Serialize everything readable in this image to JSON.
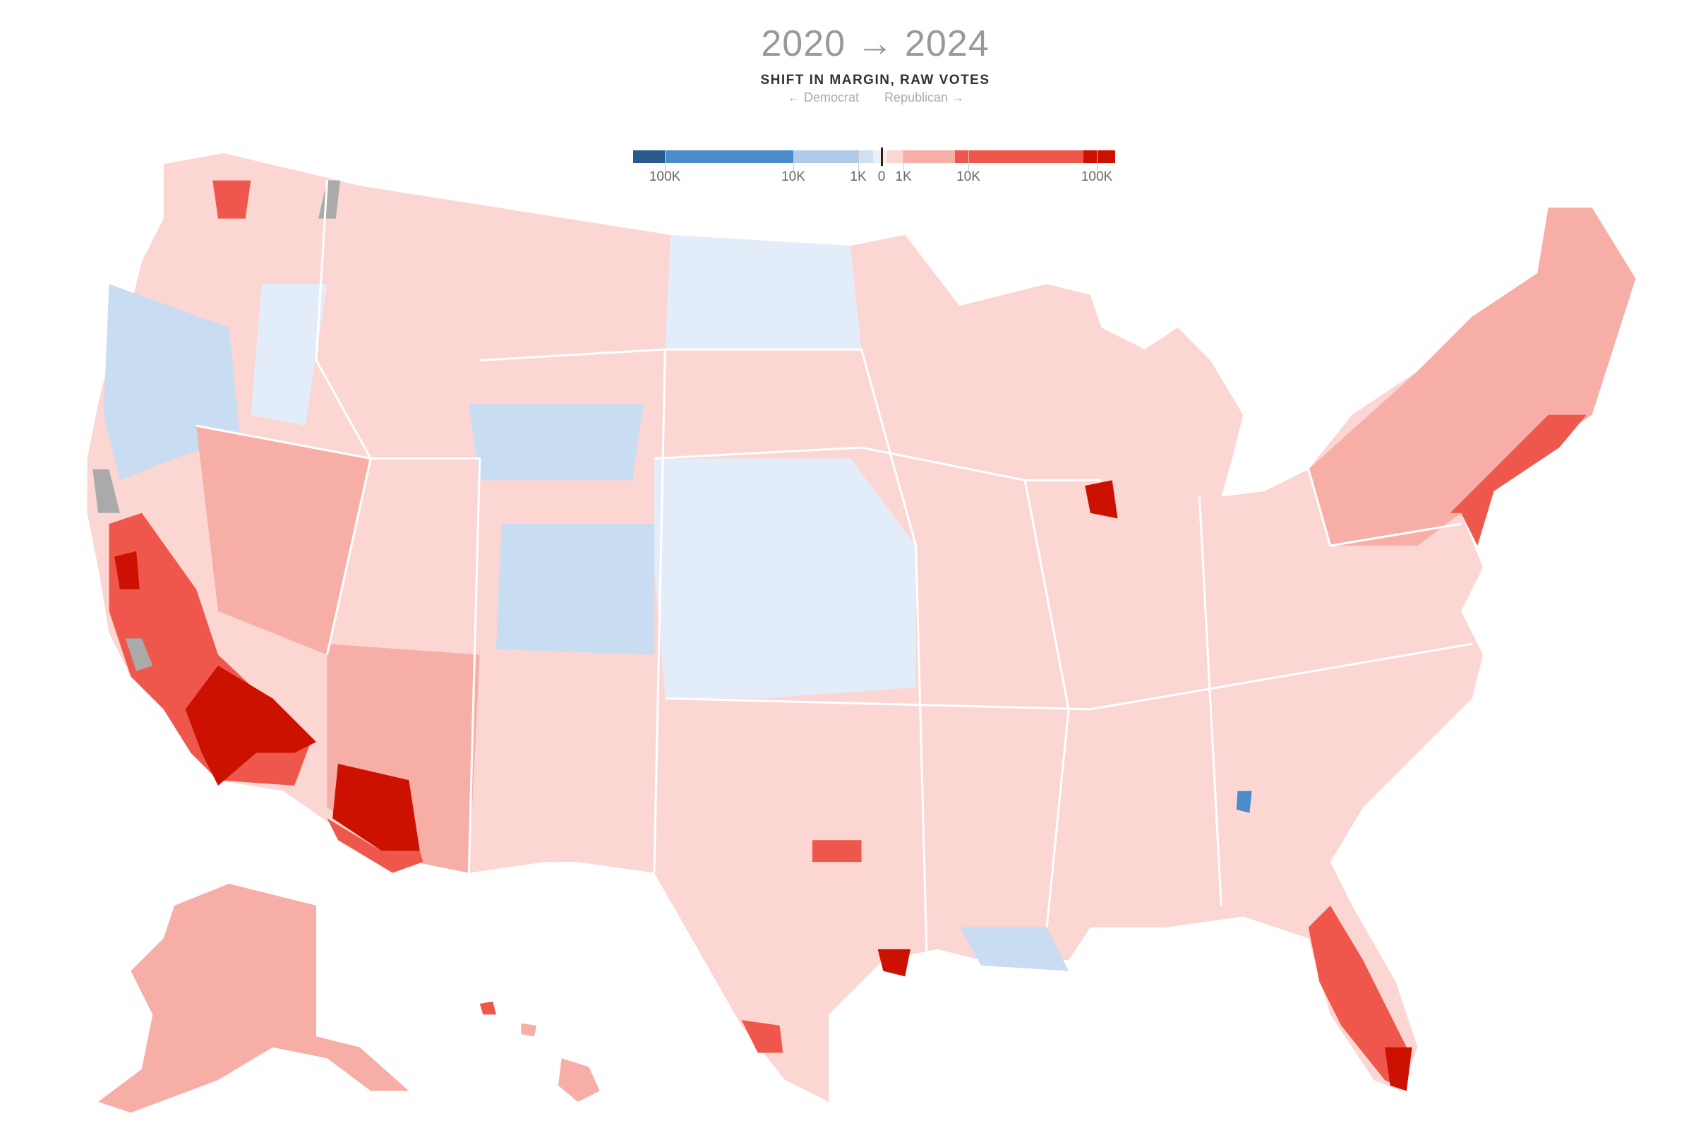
{
  "legend": {
    "title": "2020 → 2024",
    "subtitle": "SHIFT IN MARGIN, RAW VOTES",
    "democrat_label": "← Democrat",
    "republican_label": "Republican →",
    "ticks": [
      "100K",
      "10K",
      "1K",
      "0",
      "1K",
      "10K",
      "100K"
    ],
    "colors": {
      "dem_100k_plus": "#2a5b8c",
      "dem_10k_100k": "#4a8bc9",
      "dem_1k_10k": "#afcbe7",
      "dem_0_1k": "#cfe0f3",
      "dem_near0": "#e8f1fa",
      "rep_near0": "#fde9e6",
      "rep_0_1k": "#fbd6d2",
      "rep_1k_10k": "#f7aea7",
      "rep_10k_100k": "#ef574c",
      "rep_100k_plus": "#cc1100",
      "no_data": "#aaaaaa"
    }
  }
}
